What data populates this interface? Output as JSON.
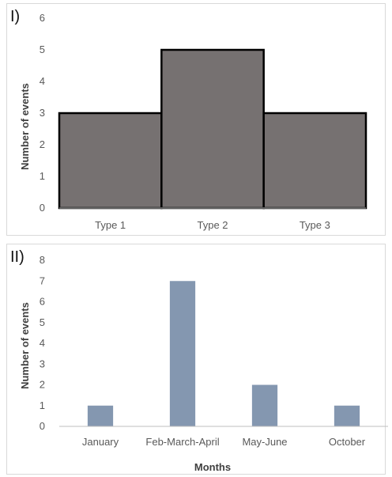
{
  "chart_data": [
    {
      "type": "bar",
      "panel_label": "I)",
      "categories": [
        "Type 1",
        "Type 2",
        "Type 3"
      ],
      "values": [
        3,
        5,
        3
      ],
      "xlabel": "",
      "ylabel": "Number of events",
      "ylim": [
        0,
        6
      ],
      "yticks": [
        "0",
        "1",
        "2",
        "3",
        "4",
        "5",
        "6"
      ],
      "grid": false,
      "bar_color": "#767171",
      "bar_edge_color": "#000000"
    },
    {
      "type": "bar",
      "panel_label": "II)",
      "categories": [
        "January",
        "Feb-March-April",
        "May-June",
        "October"
      ],
      "values": [
        1,
        7,
        2,
        1
      ],
      "xlabel": "Months",
      "ylabel": "Number of events",
      "ylim": [
        0,
        8
      ],
      "yticks": [
        "0",
        "1",
        "2",
        "3",
        "4",
        "5",
        "6",
        "7",
        "8"
      ],
      "grid": false,
      "bar_color": "#8497b0"
    }
  ]
}
